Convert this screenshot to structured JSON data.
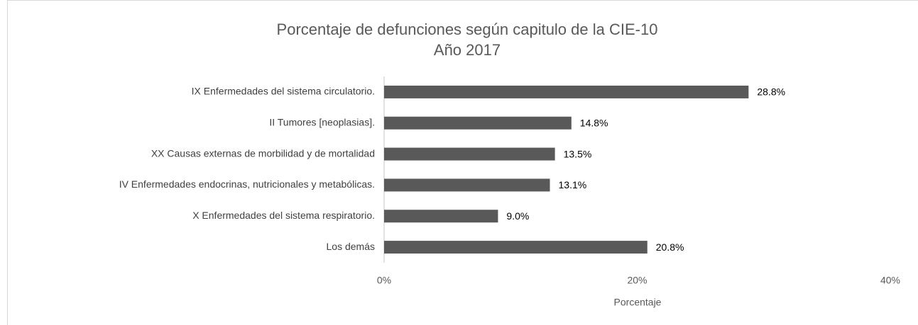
{
  "chart_data": {
    "type": "bar",
    "orientation": "horizontal",
    "title": "Porcentaje de defunciones según capitulo de la CIE-10",
    "subtitle": "Año 2017",
    "categories": [
      "IX Enfermedades del sistema circulatorio.",
      "II Tumores [neoplasias].",
      "XX Causas externas de morbilidad y de mortalidad",
      "IV Enfermedades endocrinas, nutricionales y metabólicas.",
      "X Enfermedades del sistema respiratorio.",
      "Los demás"
    ],
    "values": [
      28.8,
      14.8,
      13.5,
      13.1,
      9.0,
      20.8
    ],
    "value_labels": [
      "28.8%",
      "14.8%",
      "13.5%",
      "13.1%",
      "9.0%",
      "20.8%"
    ],
    "color": "#595959",
    "xlim": [
      0,
      40
    ],
    "xticks": [
      {
        "value": 0,
        "label": "0%"
      },
      {
        "value": 20,
        "label": "20%"
      },
      {
        "value": 40,
        "label": "40%"
      }
    ],
    "x_label": "Porcentaje",
    "grid": false
  }
}
